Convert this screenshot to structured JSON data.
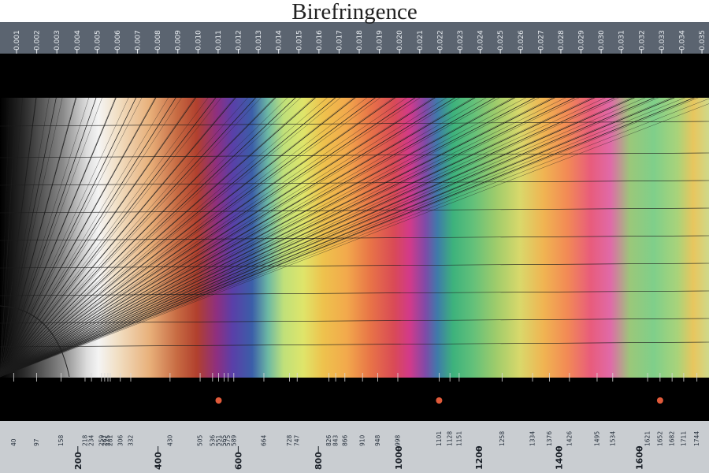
{
  "chart_data": {
    "type": "heatmap",
    "title": "Birefringence",
    "birefringence_ticks": [
      "0.001",
      "0.002",
      "0.003",
      "0.004",
      "0.005",
      "0.006",
      "0.007",
      "0.008",
      "0.009",
      "0.010",
      "0.011",
      "0.012",
      "0.013",
      "0.014",
      "0.015",
      "0.016",
      "0.017",
      "0.018",
      "0.019",
      "0.020",
      "0.021",
      "0.022",
      "0.023",
      "0.024",
      "0.025",
      "0.026",
      "0.027",
      "0.028",
      "0.029",
      "0.030",
      "0.031",
      "0.032",
      "0.033",
      "0.034",
      "0.035"
    ],
    "retardation_labels": [
      "40",
      "97",
      "158",
      "218",
      "234",
      "259",
      "267",
      "275",
      "281",
      "306",
      "332",
      "430",
      "505",
      "536",
      "551",
      "565",
      "575",
      "589",
      "664",
      "728",
      "747",
      "826",
      "843",
      "866",
      "910",
      "948",
      "998",
      "1101",
      "1128",
      "1151",
      "1258",
      "1334",
      "1376",
      "1426",
      "1495",
      "1534",
      "1621",
      "1652",
      "1682",
      "1711",
      "1744"
    ],
    "retardation_axis": [
      "200",
      "400",
      "600",
      "800",
      "1000",
      "1200",
      "1400",
      "1600"
    ],
    "order_markers": [
      551,
      1101,
      1652
    ],
    "x_range_nm": [
      0,
      1800
    ],
    "grid": true
  },
  "colors": {
    "band_black": "#000000",
    "axis_bar": "#5b6470",
    "axis_bar_bottom": "#c9cdd1",
    "marker": "#e05a3a",
    "gridline": "#1c1c1c"
  }
}
